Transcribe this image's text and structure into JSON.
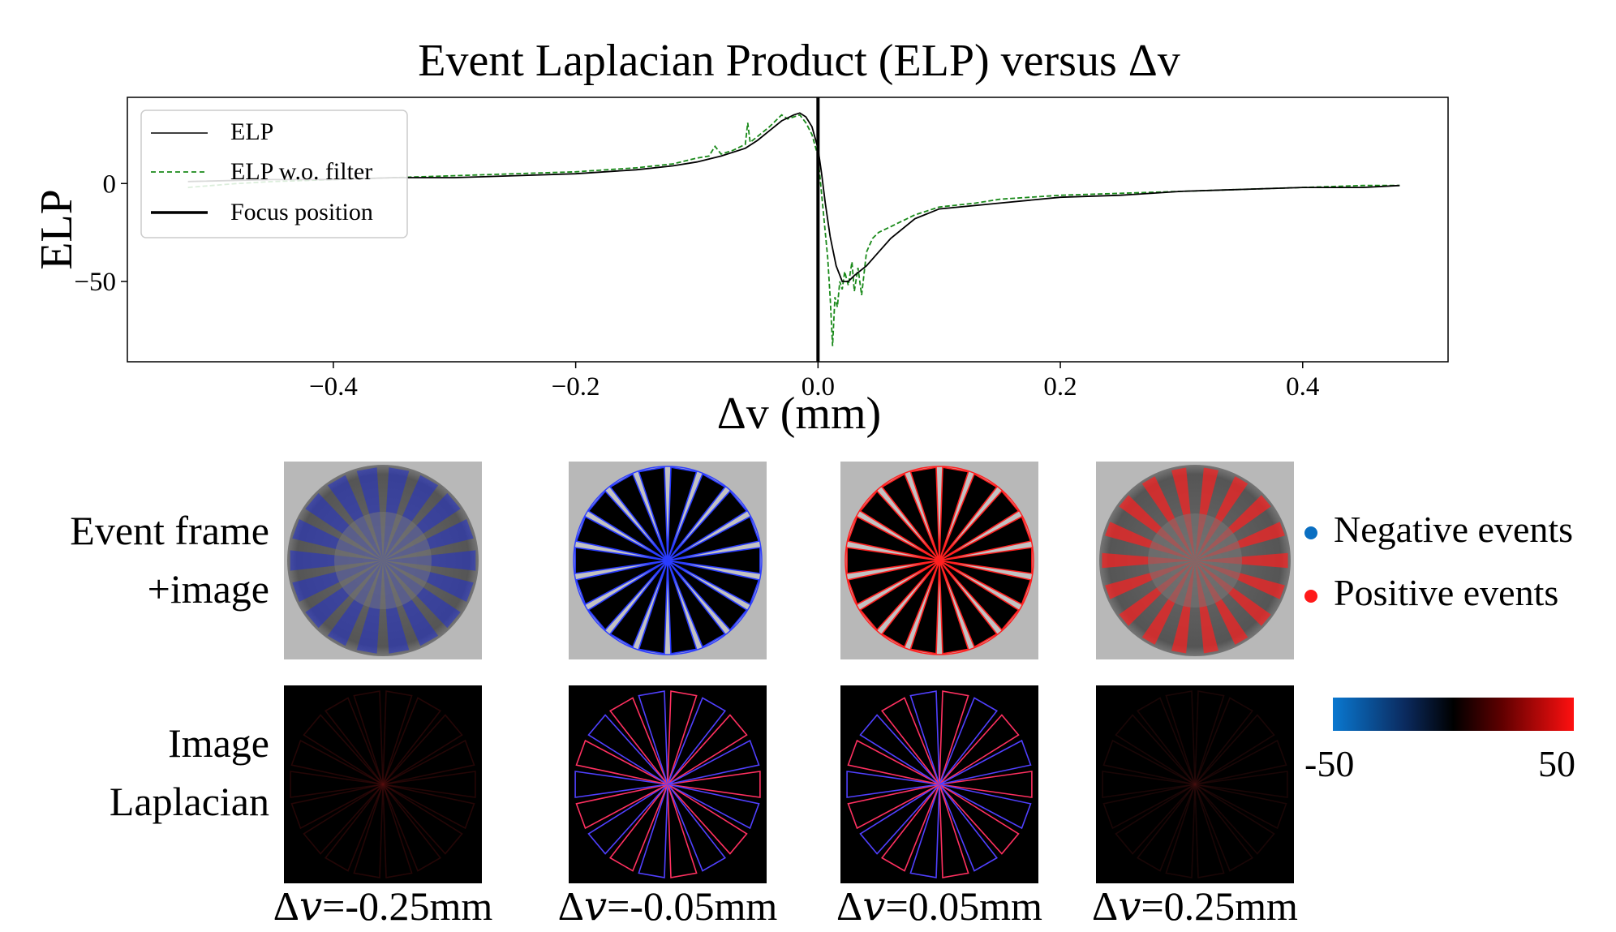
{
  "chart_data": {
    "type": "line",
    "title": "Event Laplacian Product (ELP) versus Δv",
    "xlabel": "Δv (mm)",
    "ylabel": "ELP",
    "xlim": [
      -0.57,
      0.52
    ],
    "ylim": [
      -91,
      44
    ],
    "xticks": [
      -0.4,
      -0.2,
      0.0,
      0.2,
      0.4
    ],
    "xtick_labels": [
      "−0.4",
      "−0.2",
      "0.0",
      "0.2",
      "0.4"
    ],
    "yticks": [
      0,
      -50
    ],
    "ytick_labels": [
      "0",
      "−50"
    ],
    "legend_position": "top-left",
    "vline_x": 0.0,
    "series": [
      {
        "name": "ELP",
        "color": "#000000",
        "style": "solid",
        "x": [
          -0.52,
          -0.45,
          -0.4,
          -0.35,
          -0.3,
          -0.25,
          -0.2,
          -0.15,
          -0.12,
          -0.1,
          -0.08,
          -0.06,
          -0.05,
          -0.04,
          -0.03,
          -0.02,
          -0.015,
          -0.01,
          -0.005,
          0.0,
          0.003,
          0.006,
          0.01,
          0.015,
          0.02,
          0.025,
          0.03,
          0.04,
          0.05,
          0.06,
          0.08,
          0.1,
          0.15,
          0.2,
          0.25,
          0.3,
          0.35,
          0.4,
          0.45,
          0.48
        ],
        "y": [
          1,
          2,
          2,
          3,
          3,
          4,
          5,
          7,
          9,
          11,
          14,
          18,
          22,
          27,
          32,
          35,
          36,
          34,
          29,
          18,
          5,
          -10,
          -27,
          -42,
          -50,
          -50,
          -47,
          -42,
          -35,
          -28,
          -18,
          -13,
          -10,
          -7,
          -6,
          -4,
          -3,
          -2,
          -2,
          -1
        ]
      },
      {
        "name": "ELP w.o. filter",
        "color": "#1a8a1a",
        "style": "dashed",
        "x": [
          -0.52,
          -0.48,
          -0.45,
          -0.4,
          -0.35,
          -0.3,
          -0.25,
          -0.2,
          -0.15,
          -0.12,
          -0.1,
          -0.09,
          -0.085,
          -0.08,
          -0.07,
          -0.06,
          -0.058,
          -0.056,
          -0.05,
          -0.04,
          -0.03,
          -0.025,
          -0.02,
          -0.015,
          -0.01,
          -0.005,
          0.0,
          0.004,
          0.008,
          0.01,
          0.012,
          0.014,
          0.016,
          0.018,
          0.02,
          0.022,
          0.025,
          0.028,
          0.03,
          0.033,
          0.036,
          0.04,
          0.045,
          0.05,
          0.06,
          0.08,
          0.1,
          0.13,
          0.15,
          0.2,
          0.25,
          0.3,
          0.35,
          0.4,
          0.45,
          0.48
        ],
        "y": [
          -2,
          0,
          1,
          2,
          3,
          4,
          5,
          6,
          8,
          10,
          13,
          14,
          19,
          15,
          17,
          20,
          31,
          21,
          24,
          29,
          35,
          33,
          34,
          35,
          31,
          25,
          14,
          -12,
          -38,
          -58,
          -83,
          -58,
          -63,
          -50,
          -54,
          -45,
          -52,
          -40,
          -55,
          -43,
          -57,
          -35,
          -28,
          -25,
          -22,
          -16,
          -12,
          -10,
          -8,
          -6,
          -5,
          -4,
          -3,
          -2,
          -1,
          -1
        ]
      }
    ]
  },
  "legend": {
    "entries": [
      "ELP",
      "ELP w.o. filter",
      "Focus position"
    ]
  },
  "panels": {
    "row1_label_line1": "Event frame",
    "row1_label_line2": "+image",
    "row2_label_line1": "Image",
    "row2_label_line2": "Laplacian",
    "captions": [
      "Δ𝑣=-0.25mm",
      "Δ𝑣=-0.05mm",
      "Δ𝑣=0.05mm",
      "Δ𝑣=0.25mm"
    ]
  },
  "event_legend": {
    "negative": "Negative events",
    "positive": "Positive events",
    "negative_color": "#0a6fc2",
    "positive_color": "#ff1a1a"
  },
  "colorbar": {
    "min_label": "-50",
    "max_label": "50"
  }
}
